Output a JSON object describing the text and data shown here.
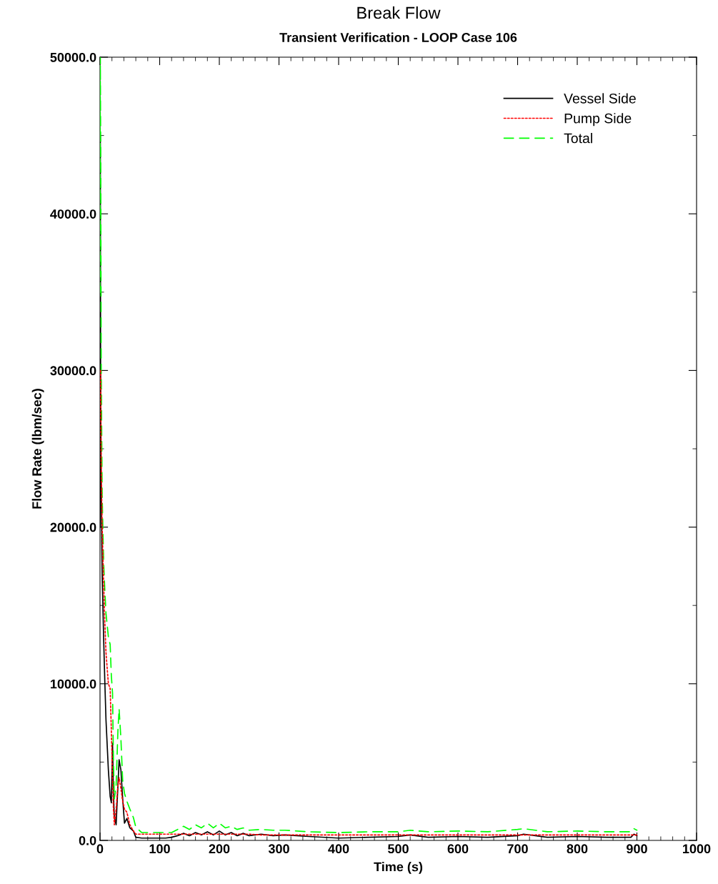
{
  "chart_data": {
    "type": "line",
    "title": "Break Flow",
    "subtitle": "Transient Verification - LOOP Case 106",
    "xlabel": "Time (s)",
    "ylabel": "Flow Rate (lbm/sec)",
    "x": [
      0,
      0.5,
      1,
      2,
      3.6,
      6,
      8,
      10,
      14,
      17,
      19,
      21,
      22.5,
      24,
      27,
      30,
      32,
      35,
      38,
      41,
      45,
      50,
      56,
      60,
      70,
      80,
      90,
      100,
      110,
      120,
      130,
      140,
      150,
      160,
      170,
      180,
      190,
      200,
      210,
      220,
      230,
      240,
      250,
      270,
      290,
      310,
      350,
      400,
      450,
      500,
      520,
      550,
      600,
      650,
      700,
      710,
      750,
      800,
      850,
      890,
      895,
      900
    ],
    "series": [
      {
        "name": "Vessel Side",
        "color": "#000000",
        "line_style": "solid",
        "values": [
          20000,
          45000,
          30000,
          22000,
          17000,
          13000,
          10200,
          7700,
          4500,
          2800,
          2400,
          6200,
          3000,
          1500,
          1000,
          3500,
          5150,
          4500,
          2650,
          1100,
          1400,
          800,
          600,
          200,
          150,
          150,
          150,
          150,
          150,
          200,
          300,
          450,
          300,
          500,
          350,
          550,
          350,
          600,
          350,
          500,
          300,
          450,
          300,
          400,
          300,
          350,
          250,
          150,
          200,
          250,
          350,
          200,
          250,
          200,
          300,
          400,
          200,
          250,
          200,
          200,
          400,
          300
        ]
      },
      {
        "name": "Pump Side",
        "color": "#ff0000",
        "line_style": "dotted",
        "x": [
          1,
          2,
          3.6,
          6,
          8,
          10,
          14,
          17,
          19,
          21,
          22.5,
          24,
          27,
          30,
          32,
          35,
          38,
          41,
          45,
          50,
          56,
          60,
          70,
          80,
          90,
          100,
          110,
          120,
          130,
          140,
          150,
          160,
          170,
          180,
          190,
          200,
          210,
          220,
          230,
          240,
          250,
          270,
          290,
          310,
          350,
          400,
          450,
          500,
          520,
          550,
          600,
          650,
          700,
          710,
          750,
          800,
          850,
          890,
          895,
          900
        ],
        "values": [
          30000,
          24000,
          20000,
          16500,
          14000,
          12000,
          10000,
          9700,
          7000,
          4000,
          2000,
          1000,
          2000,
          3500,
          4000,
          3300,
          2500,
          2000,
          1800,
          1000,
          600,
          400,
          400,
          400,
          400,
          400,
          400,
          400,
          400,
          400,
          400,
          400,
          400,
          400,
          400,
          400,
          400,
          400,
          400,
          400,
          400,
          350,
          350,
          350,
          350,
          350,
          350,
          350,
          350,
          350,
          350,
          350,
          350,
          350,
          350,
          350,
          350,
          350,
          350,
          350
        ]
      },
      {
        "name": "Total",
        "color": "#00ff00",
        "line_style": "dashed",
        "values": [
          35000,
          50000,
          45000,
          30000,
          22000,
          17800,
          16000,
          14500,
          13000,
          12500,
          10500,
          9400,
          5000,
          2650,
          3500,
          7000,
          8400,
          6500,
          3800,
          3000,
          2500,
          2000,
          1450,
          850,
          500,
          500,
          500,
          500,
          500,
          500,
          700,
          900,
          700,
          1000,
          800,
          1100,
          800,
          1100,
          800,
          900,
          700,
          800,
          650,
          700,
          650,
          650,
          550,
          500,
          550,
          550,
          650,
          550,
          600,
          550,
          700,
          750,
          550,
          600,
          550,
          550,
          750,
          650
        ]
      }
    ],
    "xlim": [
      0,
      1000
    ],
    "ylim": [
      0,
      50000
    ],
    "xticks": [
      0,
      100,
      200,
      300,
      400,
      500,
      600,
      700,
      800,
      900,
      1000
    ],
    "yticks": [
      {
        "value": 0,
        "label": "0.0"
      },
      {
        "value": 10000,
        "label": "10000.0"
      },
      {
        "value": 20000,
        "label": "20000.0"
      },
      {
        "value": 30000,
        "label": "30000.0"
      },
      {
        "value": 40000,
        "label": "40000.0"
      },
      {
        "value": 50000,
        "label": "50000.0"
      }
    ],
    "legend": "top right",
    "grid": false
  }
}
